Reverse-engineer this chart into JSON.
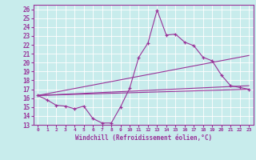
{
  "title": "",
  "xlabel": "Windchill (Refroidissement éolien,°C)",
  "background_color": "#c8ecec",
  "line_color": "#993399",
  "xlim": [
    -0.5,
    23.5
  ],
  "ylim": [
    13,
    26.5
  ],
  "xticks": [
    0,
    1,
    2,
    3,
    4,
    5,
    6,
    7,
    8,
    9,
    10,
    11,
    12,
    13,
    14,
    15,
    16,
    17,
    18,
    19,
    20,
    21,
    22,
    23
  ],
  "yticks": [
    13,
    14,
    15,
    16,
    17,
    18,
    19,
    20,
    21,
    22,
    23,
    24,
    25,
    26
  ],
  "line1_x": [
    0,
    1,
    2,
    3,
    4,
    5,
    6,
    7,
    8,
    9,
    10,
    11,
    12,
    13,
    14,
    15,
    16,
    17,
    18,
    19,
    20,
    21,
    22,
    23
  ],
  "line1_y": [
    16.3,
    15.8,
    15.2,
    15.1,
    14.8,
    15.1,
    13.7,
    13.2,
    13.2,
    15.0,
    17.1,
    20.6,
    22.2,
    25.9,
    23.1,
    23.2,
    22.3,
    21.9,
    20.6,
    20.2,
    18.6,
    17.4,
    17.2,
    17.0
  ],
  "line2_x": [
    0,
    23
  ],
  "line2_y": [
    16.3,
    17.0
  ],
  "line3_x": [
    0,
    23
  ],
  "line3_y": [
    16.3,
    20.8
  ],
  "line4_x": [
    0,
    23
  ],
  "line4_y": [
    16.3,
    17.4
  ]
}
